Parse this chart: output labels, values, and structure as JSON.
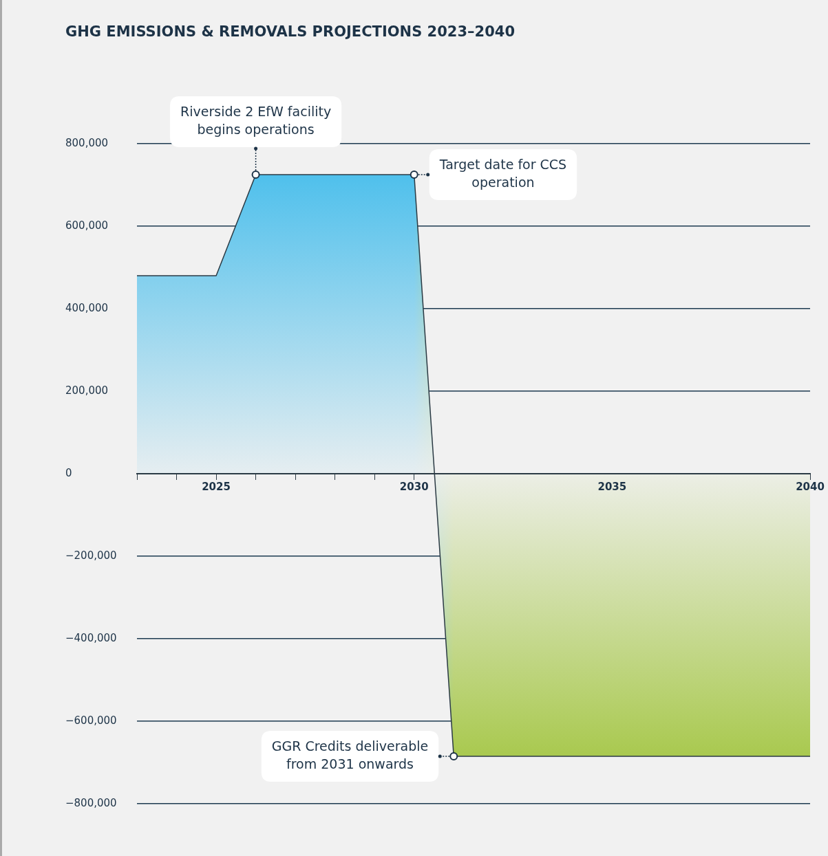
{
  "chart_data": {
    "type": "area",
    "title": "GHG EMISSIONS & REMOVALS PROJECTIONS 2023–2040",
    "x": [
      2023,
      2025,
      2026,
      2030,
      2031,
      2040
    ],
    "series": [
      {
        "color": "#2b3a44",
        "colors": [
          "#4fc0ec",
          "#4fc0ec",
          "#4fc0ec",
          "#4fc0ec",
          "#a9c94f",
          "#a9c94f"
        ],
        "values": [
          480000,
          480000,
          725000,
          725000,
          -685000,
          -685000
        ]
      }
    ],
    "xlim": [
      2023,
      2040
    ],
    "xticks": [
      {
        "value": 2023,
        "label": null
      },
      {
        "value": 2024,
        "label": null
      },
      2025,
      {
        "value": 2026,
        "label": null
      },
      {
        "value": 2027,
        "label": null
      },
      {
        "value": 2028,
        "label": null
      },
      {
        "value": 2029,
        "label": null
      },
      2030,
      {
        "value": 2031,
        "label": null
      },
      {
        "value": 2032,
        "label": null
      },
      {
        "value": 2033,
        "label": null
      },
      {
        "value": 2034,
        "label": null
      },
      2035,
      {
        "value": 2036,
        "label": null
      },
      {
        "value": 2037,
        "label": null
      },
      {
        "value": 2038,
        "label": null
      },
      {
        "value": 2039,
        "label": null
      },
      2040
    ],
    "ylim": [
      -800000,
      800000
    ],
    "yticks": [
      {
        "value": -800000,
        "label": "−800,000"
      },
      {
        "value": -600000,
        "label": "−600,000"
      },
      {
        "value": -400000,
        "label": "−400,000"
      },
      {
        "value": -200000,
        "label": "−200,000"
      },
      0,
      {
        "value": 200000,
        "label": "200,000"
      },
      {
        "value": 400000,
        "label": "400,000"
      },
      {
        "value": 600000,
        "label": "600,000"
      },
      {
        "value": 800000,
        "label": "800,000"
      }
    ],
    "grid": "y",
    "legend": false,
    "line_style": "solid",
    "annotations": [
      {
        "text": "Riverside 2 EfW facility begins operations",
        "x": 2026,
        "y": 725000
      },
      {
        "text": "Target date for CCS operation",
        "x": 2030,
        "y": 725000
      },
      {
        "text": "GGR Credits deliverable from 2031 onwards",
        "x": 2031,
        "y": -685000
      }
    ]
  }
}
